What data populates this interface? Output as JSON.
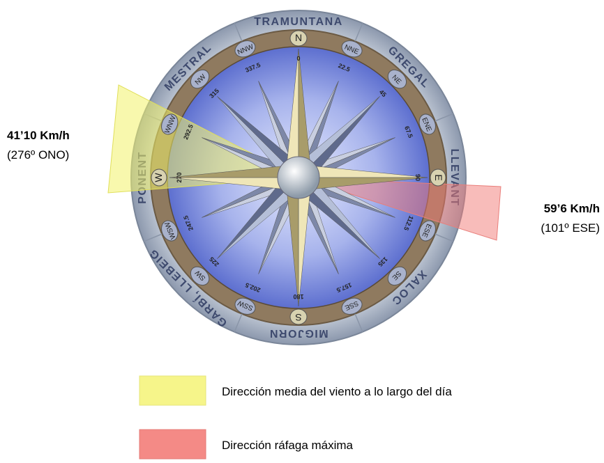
{
  "wind_names": [
    "TRAMUNTANA",
    "GREGAL",
    "LLEVANT",
    "XALOC",
    "MIGJORN",
    "GARBÍ, LLEBEIG",
    "PONENT",
    "MESTRAL"
  ],
  "points": [
    "N",
    "NNE",
    "NE",
    "ENE",
    "E",
    "ESE",
    "SE",
    "SSE",
    "S",
    "SSW",
    "SW",
    "WSW",
    "W",
    "WNW",
    "NW",
    "NNW"
  ],
  "degrees": [
    0,
    22.5,
    45,
    67.5,
    90,
    112.5,
    135,
    157.5,
    180,
    202.5,
    225,
    247.5,
    270,
    292.5,
    315,
    337.5
  ],
  "annotations": {
    "mean_speed": "41’10 Km/h",
    "mean_direction": "(276º ONO)",
    "gust_speed": "59’6 Km/h",
    "gust_direction": "(101º ESE)"
  },
  "legend": [
    {
      "label": "Dirección media del viento a lo largo del día",
      "color": "#f6f58a"
    },
    {
      "label": "Dirección ráfaga máxima",
      "color": "#f48a86"
    }
  ]
}
